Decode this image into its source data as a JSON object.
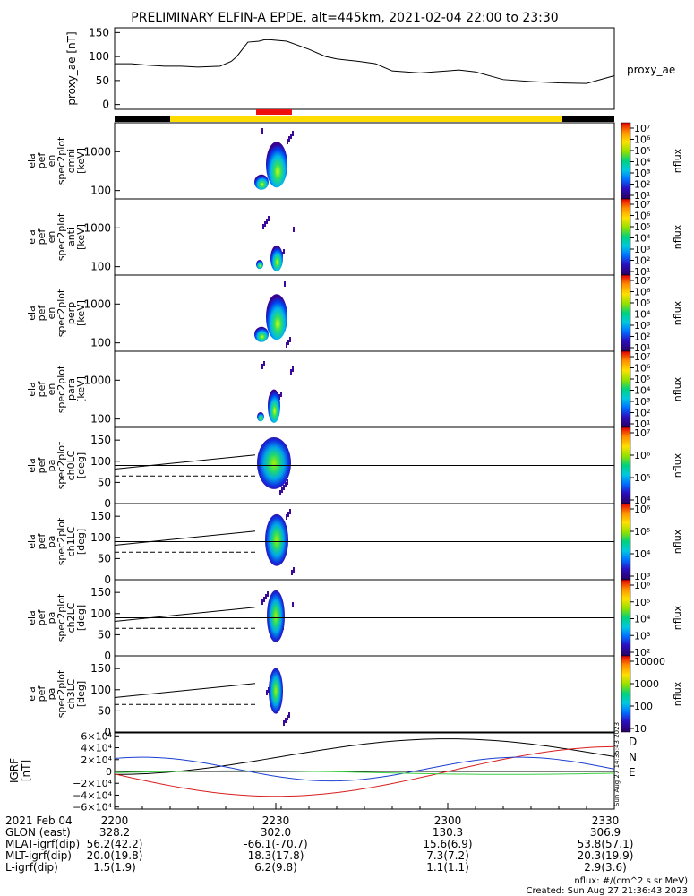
{
  "title": "PRELIMINARY ELFIN-A EPDE, alt=445km, 2021-02-04 22:00 to 23:30",
  "chart_data": [
    {
      "type": "line",
      "ylabel": "proxy_ae [nT]",
      "series_label": "proxy_ae",
      "yticks": [
        "150",
        "100",
        "50",
        "0"
      ],
      "ylim": [
        -10,
        160
      ],
      "x_minutes": [
        0,
        3,
        6,
        9,
        12,
        15,
        17,
        19,
        21,
        22,
        24,
        26,
        27,
        28,
        31,
        35,
        38,
        40,
        44,
        47,
        50,
        55,
        60,
        62,
        65,
        70,
        75,
        80,
        85,
        90
      ],
      "values": [
        85,
        85,
        82,
        80,
        80,
        78,
        79,
        80,
        90,
        100,
        130,
        132,
        135,
        135,
        132,
        115,
        100,
        95,
        90,
        85,
        70,
        66,
        70,
        72,
        68,
        52,
        48,
        45,
        44,
        60
      ]
    },
    {
      "type": "heatmap",
      "ylabel": [
        "ela",
        "pef",
        "en",
        "spec2plot",
        "omni",
        "[keV]"
      ],
      "yticks": [
        "1000",
        "100"
      ],
      "colorbar_label": "nflux",
      "colorbar_ticks": [
        "10⁷",
        "10⁶",
        "10⁵",
        "10⁴",
        "10³",
        "10²",
        "10¹"
      ]
    },
    {
      "type": "heatmap",
      "ylabel": [
        "ela",
        "pef",
        "en",
        "spec2plot",
        "anti",
        "[keV]"
      ],
      "yticks": [
        "1000",
        "100"
      ],
      "colorbar_label": "nflux",
      "colorbar_ticks": [
        "10⁷",
        "10⁶",
        "10⁵",
        "10⁴",
        "10³",
        "10²",
        "10¹"
      ]
    },
    {
      "type": "heatmap",
      "ylabel": [
        "ela",
        "pef",
        "en",
        "spec2plot",
        "perp",
        "[keV]"
      ],
      "yticks": [
        "1000",
        "100"
      ],
      "colorbar_label": "nflux",
      "colorbar_ticks": [
        "10⁷",
        "10⁶",
        "10⁵",
        "10⁴",
        "10³",
        "10²",
        "10¹"
      ]
    },
    {
      "type": "heatmap",
      "ylabel": [
        "ela",
        "pef",
        "en",
        "spec2plot",
        "para",
        "[keV]"
      ],
      "yticks": [
        "1000",
        "100"
      ],
      "colorbar_label": "nflux",
      "colorbar_ticks": [
        "10⁷",
        "10⁶",
        "10⁵",
        "10⁴",
        "10³",
        "10²",
        "10¹"
      ]
    },
    {
      "type": "heatmap",
      "ylabel": [
        "ela",
        "pef",
        "pa",
        "spec2plot",
        "ch0LC",
        "[deg]"
      ],
      "yticks": [
        "150",
        "100",
        "50",
        "0"
      ],
      "colorbar_label": "nflux",
      "colorbar_ticks": [
        "10⁷",
        "10⁶",
        "10⁵",
        "10⁴"
      ]
    },
    {
      "type": "heatmap",
      "ylabel": [
        "ela",
        "pef",
        "pa",
        "spec2plot",
        "ch1LC",
        "[deg]"
      ],
      "yticks": [
        "150",
        "100",
        "50",
        "0"
      ],
      "colorbar_label": "nflux",
      "colorbar_ticks": [
        "10⁶",
        "10⁵",
        "10⁴",
        "10³"
      ]
    },
    {
      "type": "heatmap",
      "ylabel": [
        "ela",
        "pef",
        "pa",
        "spec2plot",
        "ch2LC",
        "[deg]"
      ],
      "yticks": [
        "150",
        "100",
        "50",
        "0"
      ],
      "colorbar_label": "nflux",
      "colorbar_ticks": [
        "10⁶",
        "10⁵",
        "10⁴",
        "10³",
        "10²"
      ]
    },
    {
      "type": "heatmap",
      "ylabel": [
        "ela",
        "pef",
        "pa",
        "spec2plot",
        "ch3LC",
        "[deg]"
      ],
      "yticks": [
        "150",
        "100",
        "50",
        "0"
      ],
      "colorbar_label": "nflux",
      "colorbar_ticks": [
        "10000",
        "1000",
        "100",
        "10"
      ]
    },
    {
      "type": "line",
      "ylabel": [
        "IGRF",
        "[nT]"
      ],
      "yticks": [
        "6×10⁴",
        "4×10⁴",
        "2×10⁴",
        "0",
        "−2×10⁴",
        "−4×10⁴",
        "−6×10⁴"
      ],
      "ylim": [
        -65000,
        65000
      ],
      "legend": [
        "D",
        "N",
        "E"
      ],
      "colors": [
        "#d81e1e",
        "#1a3fd0",
        "#3ad040",
        "#000000"
      ]
    }
  ],
  "timestamp_vertical": "Sun Aug 27 14:35:43 2023",
  "xaxis": {
    "row_labels": [
      "2021 Feb 04",
      "GLON (east)",
      "MLAT-igrf(dip)",
      "MLT-igrf(dip)",
      "L-igrf(dip)"
    ],
    "columns": [
      [
        "2200",
        "328.2",
        "56.2(42.2)",
        "20.0(19.8)",
        "1.5(1.9)"
      ],
      [
        "2230",
        "302.0",
        "-66.1(-70.7)",
        "18.3(17.8)",
        "6.2(9.8)"
      ],
      [
        "2300",
        "130.3",
        "15.6(6.9)",
        "7.3(7.2)",
        "1.1(1.1)"
      ],
      [
        "2330",
        "306.9",
        "53.8(57.1)",
        "20.3(19.9)",
        "2.9(3.6)"
      ]
    ]
  },
  "footer": {
    "units": "nflux: #/(cm^2 s sr MeV)",
    "created": "Created: Sun Aug 27 21:36:43 2023"
  }
}
